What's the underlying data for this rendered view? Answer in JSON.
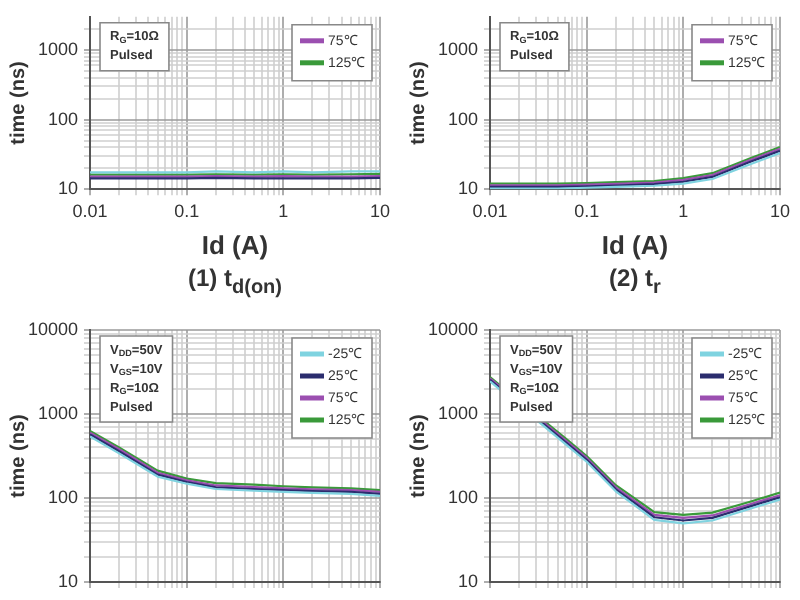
{
  "chart_data": [
    {
      "type": "line",
      "title": "(1) t$_{d(on)}$",
      "xlabel": "Id (A)",
      "ylabel": "time (ns)",
      "log": "xy",
      "grid": true,
      "legend": "top right",
      "annotations": [
        "R$_{G}$=10Ω",
        "Pulsed"
      ],
      "x": [
        0.01,
        0.02,
        0.05,
        0.1,
        0.2,
        0.5,
        1,
        2,
        5,
        10
      ],
      "xlim": [
        0.01,
        10
      ],
      "xticks": [
        0.01,
        {
          "value": 0.02,
          "label": null
        },
        {
          "value": 0.03,
          "label": null
        },
        {
          "value": 0.04,
          "label": null
        },
        {
          "value": 0.05,
          "label": null
        },
        {
          "value": 0.06,
          "label": null
        },
        {
          "value": 0.07,
          "label": null
        },
        {
          "value": 0.08,
          "label": null
        },
        {
          "value": 0.09,
          "label": null
        },
        0.1,
        {
          "value": 0.2,
          "label": null
        },
        {
          "value": 0.3,
          "label": null
        },
        {
          "value": 0.4,
          "label": null
        },
        {
          "value": 0.5,
          "label": null
        },
        {
          "value": 0.6,
          "label": null
        },
        {
          "value": 0.7,
          "label": null
        },
        {
          "value": 0.8,
          "label": null
        },
        {
          "value": 0.9,
          "label": null
        },
        1,
        {
          "value": 2,
          "label": null
        },
        {
          "value": 3,
          "label": null
        },
        {
          "value": 4,
          "label": null
        },
        {
          "value": 5,
          "label": null
        },
        {
          "value": 6,
          "label": null
        },
        {
          "value": 7,
          "label": null
        },
        {
          "value": 8,
          "label": null
        },
        {
          "value": 9,
          "label": null
        },
        10
      ],
      "ylim": [
        10,
        3000
      ],
      "yticks": [
        10,
        {
          "value": 20,
          "label": null
        },
        {
          "value": 30,
          "label": null
        },
        {
          "value": 40,
          "label": null
        },
        {
          "value": 50,
          "label": null
        },
        {
          "value": 60,
          "label": null
        },
        {
          "value": 70,
          "label": null
        },
        {
          "value": 80,
          "label": null
        },
        {
          "value": 90,
          "label": null
        },
        100,
        {
          "value": 200,
          "label": null
        },
        {
          "value": 300,
          "label": null
        },
        {
          "value": 400,
          "label": null
        },
        {
          "value": 500,
          "label": null
        },
        {
          "value": 600,
          "label": null
        },
        {
          "value": 700,
          "label": null
        },
        {
          "value": 800,
          "label": null
        },
        {
          "value": 900,
          "label": null
        },
        1000,
        {
          "value": 2000,
          "label": null
        }
      ],
      "series": [
        {
          "color": "#7fd3e0",
          "values": [
            17.5,
            17.5,
            17.5,
            17.5,
            18,
            17.5,
            18,
            17.5,
            18,
            18
          ]
        },
        {
          "color": "#2b2d6e",
          "values": [
            14.3,
            14.3,
            14.3,
            14.3,
            14.5,
            14.3,
            14.3,
            14.3,
            14.3,
            14.5
          ]
        },
        {
          "name": "75℃",
          "color": "#9b4fb0",
          "values": [
            15.2,
            15.2,
            15.2,
            15.2,
            15.4,
            15.2,
            15.4,
            15.2,
            15.2,
            15.4
          ]
        },
        {
          "name": "125℃",
          "color": "#3a9a3a",
          "values": [
            16.2,
            16.2,
            16.2,
            16.2,
            16.4,
            16.2,
            16.4,
            16.2,
            16.4,
            16.6
          ]
        }
      ]
    },
    {
      "type": "line",
      "title": "(2) t$_{r}$",
      "xlabel": "Id (A)",
      "ylabel": "time (ns)",
      "log": "xy",
      "grid": true,
      "legend": "top right",
      "annotations": [
        "R$_{G}$=10Ω",
        "Pulsed"
      ],
      "x": [
        0.01,
        0.02,
        0.05,
        0.1,
        0.2,
        0.5,
        1,
        2,
        5,
        10
      ],
      "xlim": [
        0.01,
        10
      ],
      "xticks": [
        0.01,
        {
          "value": 0.02,
          "label": null
        },
        {
          "value": 0.03,
          "label": null
        },
        {
          "value": 0.04,
          "label": null
        },
        {
          "value": 0.05,
          "label": null
        },
        {
          "value": 0.06,
          "label": null
        },
        {
          "value": 0.07,
          "label": null
        },
        {
          "value": 0.08,
          "label": null
        },
        {
          "value": 0.09,
          "label": null
        },
        0.1,
        {
          "value": 0.2,
          "label": null
        },
        {
          "value": 0.3,
          "label": null
        },
        {
          "value": 0.4,
          "label": null
        },
        {
          "value": 0.5,
          "label": null
        },
        {
          "value": 0.6,
          "label": null
        },
        {
          "value": 0.7,
          "label": null
        },
        {
          "value": 0.8,
          "label": null
        },
        {
          "value": 0.9,
          "label": null
        },
        1,
        {
          "value": 2,
          "label": null
        },
        {
          "value": 3,
          "label": null
        },
        {
          "value": 4,
          "label": null
        },
        {
          "value": 5,
          "label": null
        },
        {
          "value": 6,
          "label": null
        },
        {
          "value": 7,
          "label": null
        },
        {
          "value": 8,
          "label": null
        },
        {
          "value": 9,
          "label": null
        },
        10
      ],
      "ylim": [
        10,
        3000
      ],
      "yticks": [
        10,
        {
          "value": 20,
          "label": null
        },
        {
          "value": 30,
          "label": null
        },
        {
          "value": 40,
          "label": null
        },
        {
          "value": 50,
          "label": null
        },
        {
          "value": 60,
          "label": null
        },
        {
          "value": 70,
          "label": null
        },
        {
          "value": 80,
          "label": null
        },
        {
          "value": 90,
          "label": null
        },
        100,
        {
          "value": 200,
          "label": null
        },
        {
          "value": 300,
          "label": null
        },
        {
          "value": 400,
          "label": null
        },
        {
          "value": 500,
          "label": null
        },
        {
          "value": 600,
          "label": null
        },
        {
          "value": 700,
          "label": null
        },
        {
          "value": 800,
          "label": null
        },
        {
          "value": 900,
          "label": null
        },
        1000,
        {
          "value": 2000,
          "label": null
        }
      ],
      "series": [
        {
          "color": "#7fd3e0",
          "values": [
            10.2,
            10.2,
            10.2,
            10.5,
            10.8,
            11.2,
            12,
            14,
            23,
            33
          ]
        },
        {
          "color": "#2b2d6e",
          "values": [
            10.8,
            10.8,
            10.8,
            11,
            11.3,
            11.8,
            12.8,
            15,
            25,
            35.5
          ]
        },
        {
          "name": "75℃",
          "color": "#9b4fb0",
          "values": [
            11.4,
            11.4,
            11.4,
            11.6,
            11.9,
            12.4,
            13.6,
            16,
            26.5,
            38
          ]
        },
        {
          "name": "125℃",
          "color": "#3a9a3a",
          "values": [
            12,
            12,
            12,
            12.2,
            12.6,
            13.1,
            14.4,
            17,
            28,
            40.5
          ]
        }
      ]
    },
    {
      "type": "line",
      "ylabel": "time (ns)",
      "log": "xy",
      "grid": true,
      "legend": "top right",
      "tick_labels": "y",
      "annotations": [
        "V$_{DD}$=50V",
        "V$_{GS}$=10V",
        "R$_{G}$=10Ω",
        "Pulsed"
      ],
      "x": [
        0.01,
        0.02,
        0.05,
        0.1,
        0.2,
        0.5,
        1,
        2,
        5,
        10
      ],
      "xlim": [
        0.01,
        10
      ],
      "xticks": [
        0.01,
        {
          "value": 0.02,
          "label": null
        },
        {
          "value": 0.03,
          "label": null
        },
        {
          "value": 0.04,
          "label": null
        },
        {
          "value": 0.05,
          "label": null
        },
        {
          "value": 0.06,
          "label": null
        },
        {
          "value": 0.07,
          "label": null
        },
        {
          "value": 0.08,
          "label": null
        },
        {
          "value": 0.09,
          "label": null
        },
        0.1,
        {
          "value": 0.2,
          "label": null
        },
        {
          "value": 0.3,
          "label": null
        },
        {
          "value": 0.4,
          "label": null
        },
        {
          "value": 0.5,
          "label": null
        },
        {
          "value": 0.6,
          "label": null
        },
        {
          "value": 0.7,
          "label": null
        },
        {
          "value": 0.8,
          "label": null
        },
        {
          "value": 0.9,
          "label": null
        },
        1,
        {
          "value": 2,
          "label": null
        },
        {
          "value": 3,
          "label": null
        },
        {
          "value": 4,
          "label": null
        },
        {
          "value": 5,
          "label": null
        },
        {
          "value": 6,
          "label": null
        },
        {
          "value": 7,
          "label": null
        },
        {
          "value": 8,
          "label": null
        },
        {
          "value": 9,
          "label": null
        },
        10
      ],
      "ylim": [
        10,
        10000
      ],
      "yticks": [
        10,
        {
          "value": 20,
          "label": null
        },
        {
          "value": 30,
          "label": null
        },
        {
          "value": 40,
          "label": null
        },
        {
          "value": 50,
          "label": null
        },
        {
          "value": 60,
          "label": null
        },
        {
          "value": 70,
          "label": null
        },
        {
          "value": 80,
          "label": null
        },
        {
          "value": 90,
          "label": null
        },
        100,
        {
          "value": 200,
          "label": null
        },
        {
          "value": 300,
          "label": null
        },
        {
          "value": 400,
          "label": null
        },
        {
          "value": 500,
          "label": null
        },
        {
          "value": 600,
          "label": null
        },
        {
          "value": 700,
          "label": null
        },
        {
          "value": 800,
          "label": null
        },
        {
          "value": 900,
          "label": null
        },
        1000,
        {
          "value": 2000,
          "label": null
        },
        {
          "value": 3000,
          "label": null
        },
        {
          "value": 4000,
          "label": null
        },
        {
          "value": 5000,
          "label": null
        },
        {
          "value": 6000,
          "label": null
        },
        {
          "value": 7000,
          "label": null
        },
        {
          "value": 8000,
          "label": null
        },
        {
          "value": 9000,
          "label": null
        },
        10000
      ],
      "series": [
        {
          "name": "-25℃",
          "color": "#7fd3e0",
          "values": [
            540,
            340,
            180,
            148,
            128,
            122,
            118,
            115,
            112,
            106
          ]
        },
        {
          "name": "25℃",
          "color": "#2b2d6e",
          "values": [
            570,
            360,
            190,
            155,
            134,
            128,
            124,
            121,
            118,
            112
          ]
        },
        {
          "name": "75℃",
          "color": "#9b4fb0",
          "values": [
            600,
            380,
            200,
            162,
            141,
            135,
            130,
            127,
            124,
            118
          ]
        },
        {
          "name": "125℃",
          "color": "#3a9a3a",
          "values": [
            630,
            400,
            212,
            170,
            150,
            144,
            138,
            134,
            130,
            124
          ]
        }
      ]
    },
    {
      "type": "line",
      "ylabel": "time (ns)",
      "log": "xy",
      "grid": true,
      "legend": "top right",
      "tick_labels": "y",
      "annotations": [
        "V$_{DD}$=50V",
        "V$_{GS}$=10V",
        "R$_{G}$=10Ω",
        "Pulsed"
      ],
      "x": [
        0.01,
        0.06,
        0.1,
        0.2,
        0.5,
        1,
        2,
        5,
        10
      ],
      "xlim": [
        0.01,
        10
      ],
      "xticks": [
        0.01,
        {
          "value": 0.02,
          "label": null
        },
        {
          "value": 0.03,
          "label": null
        },
        {
          "value": 0.04,
          "label": null
        },
        {
          "value": 0.05,
          "label": null
        },
        {
          "value": 0.06,
          "label": null
        },
        {
          "value": 0.07,
          "label": null
        },
        {
          "value": 0.08,
          "label": null
        },
        {
          "value": 0.09,
          "label": null
        },
        0.1,
        {
          "value": 0.2,
          "label": null
        },
        {
          "value": 0.3,
          "label": null
        },
        {
          "value": 0.4,
          "label": null
        },
        {
          "value": 0.5,
          "label": null
        },
        {
          "value": 0.6,
          "label": null
        },
        {
          "value": 0.7,
          "label": null
        },
        {
          "value": 0.8,
          "label": null
        },
        {
          "value": 0.9,
          "label": null
        },
        1,
        {
          "value": 2,
          "label": null
        },
        {
          "value": 3,
          "label": null
        },
        {
          "value": 4,
          "label": null
        },
        {
          "value": 5,
          "label": null
        },
        {
          "value": 6,
          "label": null
        },
        {
          "value": 7,
          "label": null
        },
        {
          "value": 8,
          "label": null
        },
        {
          "value": 9,
          "label": null
        },
        10
      ],
      "ylim": [
        10,
        10000
      ],
      "yticks": [
        10,
        {
          "value": 20,
          "label": null
        },
        {
          "value": 30,
          "label": null
        },
        {
          "value": 40,
          "label": null
        },
        {
          "value": 50,
          "label": null
        },
        {
          "value": 60,
          "label": null
        },
        {
          "value": 70,
          "label": null
        },
        {
          "value": 80,
          "label": null
        },
        {
          "value": 90,
          "label": null
        },
        100,
        {
          "value": 200,
          "label": null
        },
        {
          "value": 300,
          "label": null
        },
        {
          "value": 400,
          "label": null
        },
        {
          "value": 500,
          "label": null
        },
        {
          "value": 600,
          "label": null
        },
        {
          "value": 700,
          "label": null
        },
        {
          "value": 800,
          "label": null
        },
        {
          "value": 900,
          "label": null
        },
        1000,
        {
          "value": 2000,
          "label": null
        },
        {
          "value": 3000,
          "label": null
        },
        {
          "value": 4000,
          "label": null
        },
        {
          "value": 5000,
          "label": null
        },
        {
          "value": 6000,
          "label": null
        },
        {
          "value": 7000,
          "label": null
        },
        {
          "value": 8000,
          "label": null
        },
        {
          "value": 9000,
          "label": null
        },
        10000
      ],
      "series": [
        {
          "name": "-25℃",
          "color": "#7fd3e0",
          "values": [
            2450,
            440,
            270,
            120,
            55,
            50,
            54,
            75,
            96
          ]
        },
        {
          "name": "25℃",
          "color": "#2b2d6e",
          "values": [
            2550,
            465,
            285,
            127,
            59,
            54,
            58,
            80,
            102
          ]
        },
        {
          "name": "75℃",
          "color": "#9b4fb0",
          "values": [
            2650,
            490,
            300,
            134,
            63,
            58,
            62,
            85,
            108
          ]
        },
        {
          "name": "125℃",
          "color": "#3a9a3a",
          "values": [
            2750,
            515,
            315,
            142,
            68,
            63,
            67,
            91,
            116
          ]
        }
      ]
    }
  ]
}
